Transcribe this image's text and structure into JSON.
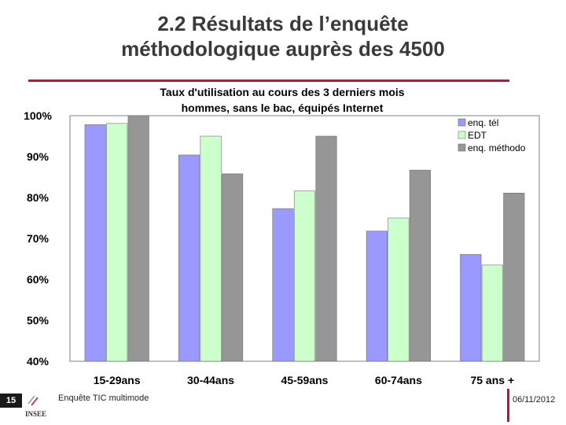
{
  "slide": {
    "title_line1": "2.2 Résultats de l’enquête",
    "title_line2": "méthodologique auprès des 4500",
    "footer_page": "15",
    "footer_left": "Enquête TIC multimode",
    "footer_date": "06/11/2012",
    "logo_text": "INSEE"
  },
  "colors": {
    "accent_red": "#c8102e",
    "series_tel": "#9999ff",
    "series_edt": "#ccffcc",
    "series_metho": "#969696"
  },
  "chart_data": {
    "type": "bar",
    "title_line1": "Taux d'utilisation au cours des 3 derniers mois",
    "title_line2": "hommes, sans le bac, équipés Internet",
    "categories": [
      "15-29ans",
      "30-44ans",
      "45-59ans",
      "60-74ans",
      "75 ans +"
    ],
    "series": [
      {
        "name": "enq. tél",
        "color": "#9999ff",
        "values": [
          97.8,
          90.4,
          77.3,
          71.8,
          66.1
        ]
      },
      {
        "name": "EDT",
        "color": "#ccffcc",
        "values": [
          98.1,
          95.0,
          81.6,
          75.0,
          63.5
        ]
      },
      {
        "name": "enq. méthodo",
        "color": "#969696",
        "values": [
          100.0,
          85.8,
          95.0,
          86.7,
          81.1
        ]
      }
    ],
    "ylim": [
      40,
      100
    ],
    "yticks": [
      "100%",
      "90%",
      "80%",
      "70%",
      "60%",
      "50%",
      "40%"
    ],
    "ytick_values": [
      100,
      90,
      80,
      70,
      60,
      50,
      40
    ],
    "legend_position": "top-right",
    "grid": false
  }
}
